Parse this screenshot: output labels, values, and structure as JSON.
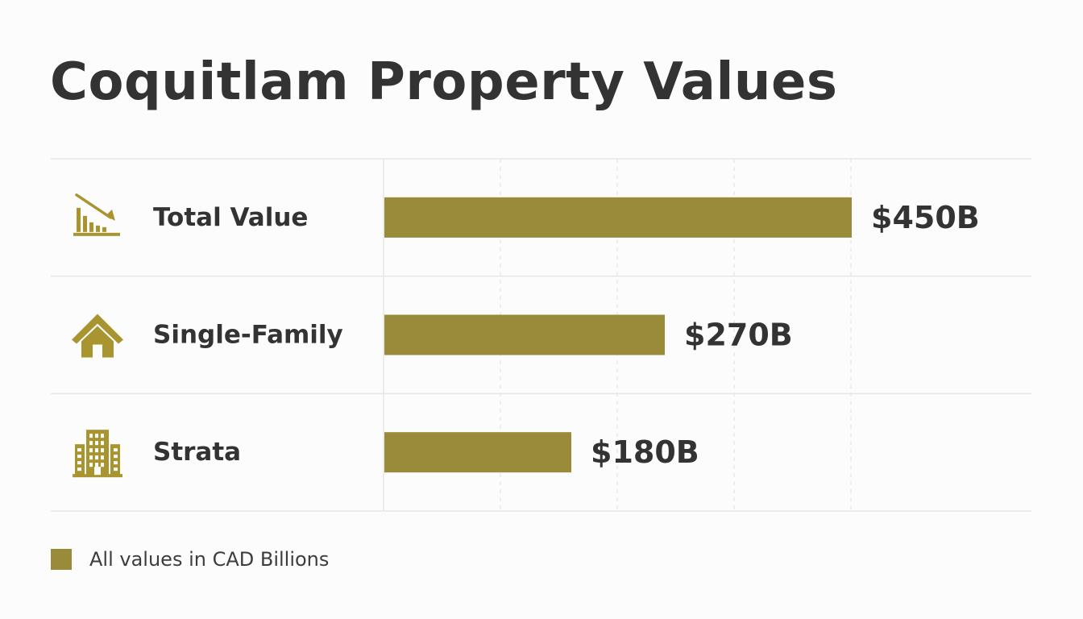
{
  "chart_data": {
    "type": "bar",
    "orientation": "horizontal",
    "title": "Coquitlam Property Values",
    "categories": [
      "Total Value",
      "Single-Family",
      "Strata"
    ],
    "icons": [
      "declining-bar-chart-icon",
      "house-icon",
      "apartment-building-icon"
    ],
    "values": [
      450,
      270,
      180
    ],
    "value_labels": [
      "$450B",
      "$270B",
      "$180B"
    ],
    "unit": "CAD Billions",
    "xlabel": "",
    "ylabel": "",
    "grid": true,
    "axis_ticks_visible": false,
    "legend": {
      "label": "All values in CAD Billions",
      "placement": "bottom-left"
    }
  },
  "colors": {
    "bar": "#9a8b3a",
    "icon": "#a89530",
    "text": "#333333",
    "grid": "#e6e6e6",
    "background": "#fcfcfc"
  }
}
